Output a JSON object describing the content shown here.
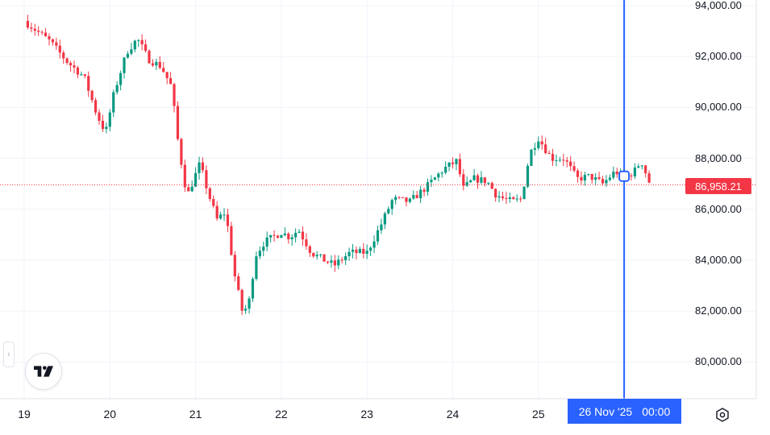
{
  "chart_data": {
    "type": "candlestick",
    "title": "",
    "y_axis": {
      "range": [
        78600,
        94200
      ],
      "ticks": [
        "94,000.00",
        "92,000.00",
        "90,000.00",
        "88,000.00",
        "86,000.00",
        "84,000.00",
        "82,000.00",
        "80,000.00"
      ],
      "tick_values": [
        94000,
        92000,
        90000,
        88000,
        86000,
        84000,
        82000,
        80000
      ]
    },
    "x_axis": {
      "ticks": [
        "19",
        "20",
        "21",
        "22",
        "23",
        "24",
        "25"
      ],
      "tick_days": [
        19,
        20,
        21,
        22,
        23,
        24,
        25
      ],
      "range_days": [
        19.0,
        27.3
      ]
    },
    "grid": true,
    "current_price": 86958.21,
    "current_price_label": "86,958.21",
    "crosshair": {
      "day": 26.0,
      "price": 87300,
      "date_label": "26 Nov '25",
      "time_label": "00:00"
    },
    "up_color": "#089981",
    "down_color": "#f23645",
    "key_points": [
      [
        19.0,
        93400
      ],
      [
        19.3,
        92600
      ],
      [
        19.5,
        91800
      ],
      [
        19.7,
        91200
      ],
      [
        19.85,
        89700
      ],
      [
        19.95,
        89000
      ],
      [
        20.05,
        90600
      ],
      [
        20.2,
        92200
      ],
      [
        20.32,
        92700
      ],
      [
        20.45,
        91900
      ],
      [
        20.6,
        91600
      ],
      [
        20.72,
        90800
      ],
      [
        20.8,
        88500
      ],
      [
        20.9,
        86500
      ],
      [
        21.05,
        87800
      ],
      [
        21.15,
        86600
      ],
      [
        21.25,
        85600
      ],
      [
        21.35,
        85900
      ],
      [
        21.45,
        83500
      ],
      [
        21.55,
        81900
      ],
      [
        21.62,
        82300
      ],
      [
        21.7,
        84200
      ],
      [
        21.8,
        84700
      ],
      [
        22.0,
        85100
      ],
      [
        22.1,
        84900
      ],
      [
        22.2,
        85200
      ],
      [
        22.35,
        84300
      ],
      [
        22.5,
        84000
      ],
      [
        22.62,
        83800
      ],
      [
        22.8,
        84300
      ],
      [
        23.0,
        84300
      ],
      [
        23.15,
        85300
      ],
      [
        23.3,
        86400
      ],
      [
        23.5,
        86300
      ],
      [
        23.7,
        86900
      ],
      [
        23.9,
        87600
      ],
      [
        24.05,
        87900
      ],
      [
        24.12,
        86800
      ],
      [
        24.25,
        87200
      ],
      [
        24.4,
        87100
      ],
      [
        24.5,
        86600
      ],
      [
        24.6,
        86400
      ],
      [
        24.7,
        86300
      ],
      [
        24.8,
        86400
      ],
      [
        24.9,
        88200
      ],
      [
        25.0,
        88800
      ],
      [
        25.15,
        88000
      ],
      [
        25.3,
        88000
      ],
      [
        25.45,
        87200
      ],
      [
        25.6,
        87300
      ],
      [
        25.75,
        87000
      ],
      [
        25.9,
        87500
      ],
      [
        26.0,
        87200
      ],
      [
        26.12,
        87500
      ],
      [
        26.2,
        87900
      ],
      [
        26.3,
        87000
      ]
    ]
  },
  "icons": {
    "logo": "tradingview-logo",
    "collapse": "chevron-left-icon",
    "settings": "settings-icon"
  },
  "collapse_glyph": "‹"
}
